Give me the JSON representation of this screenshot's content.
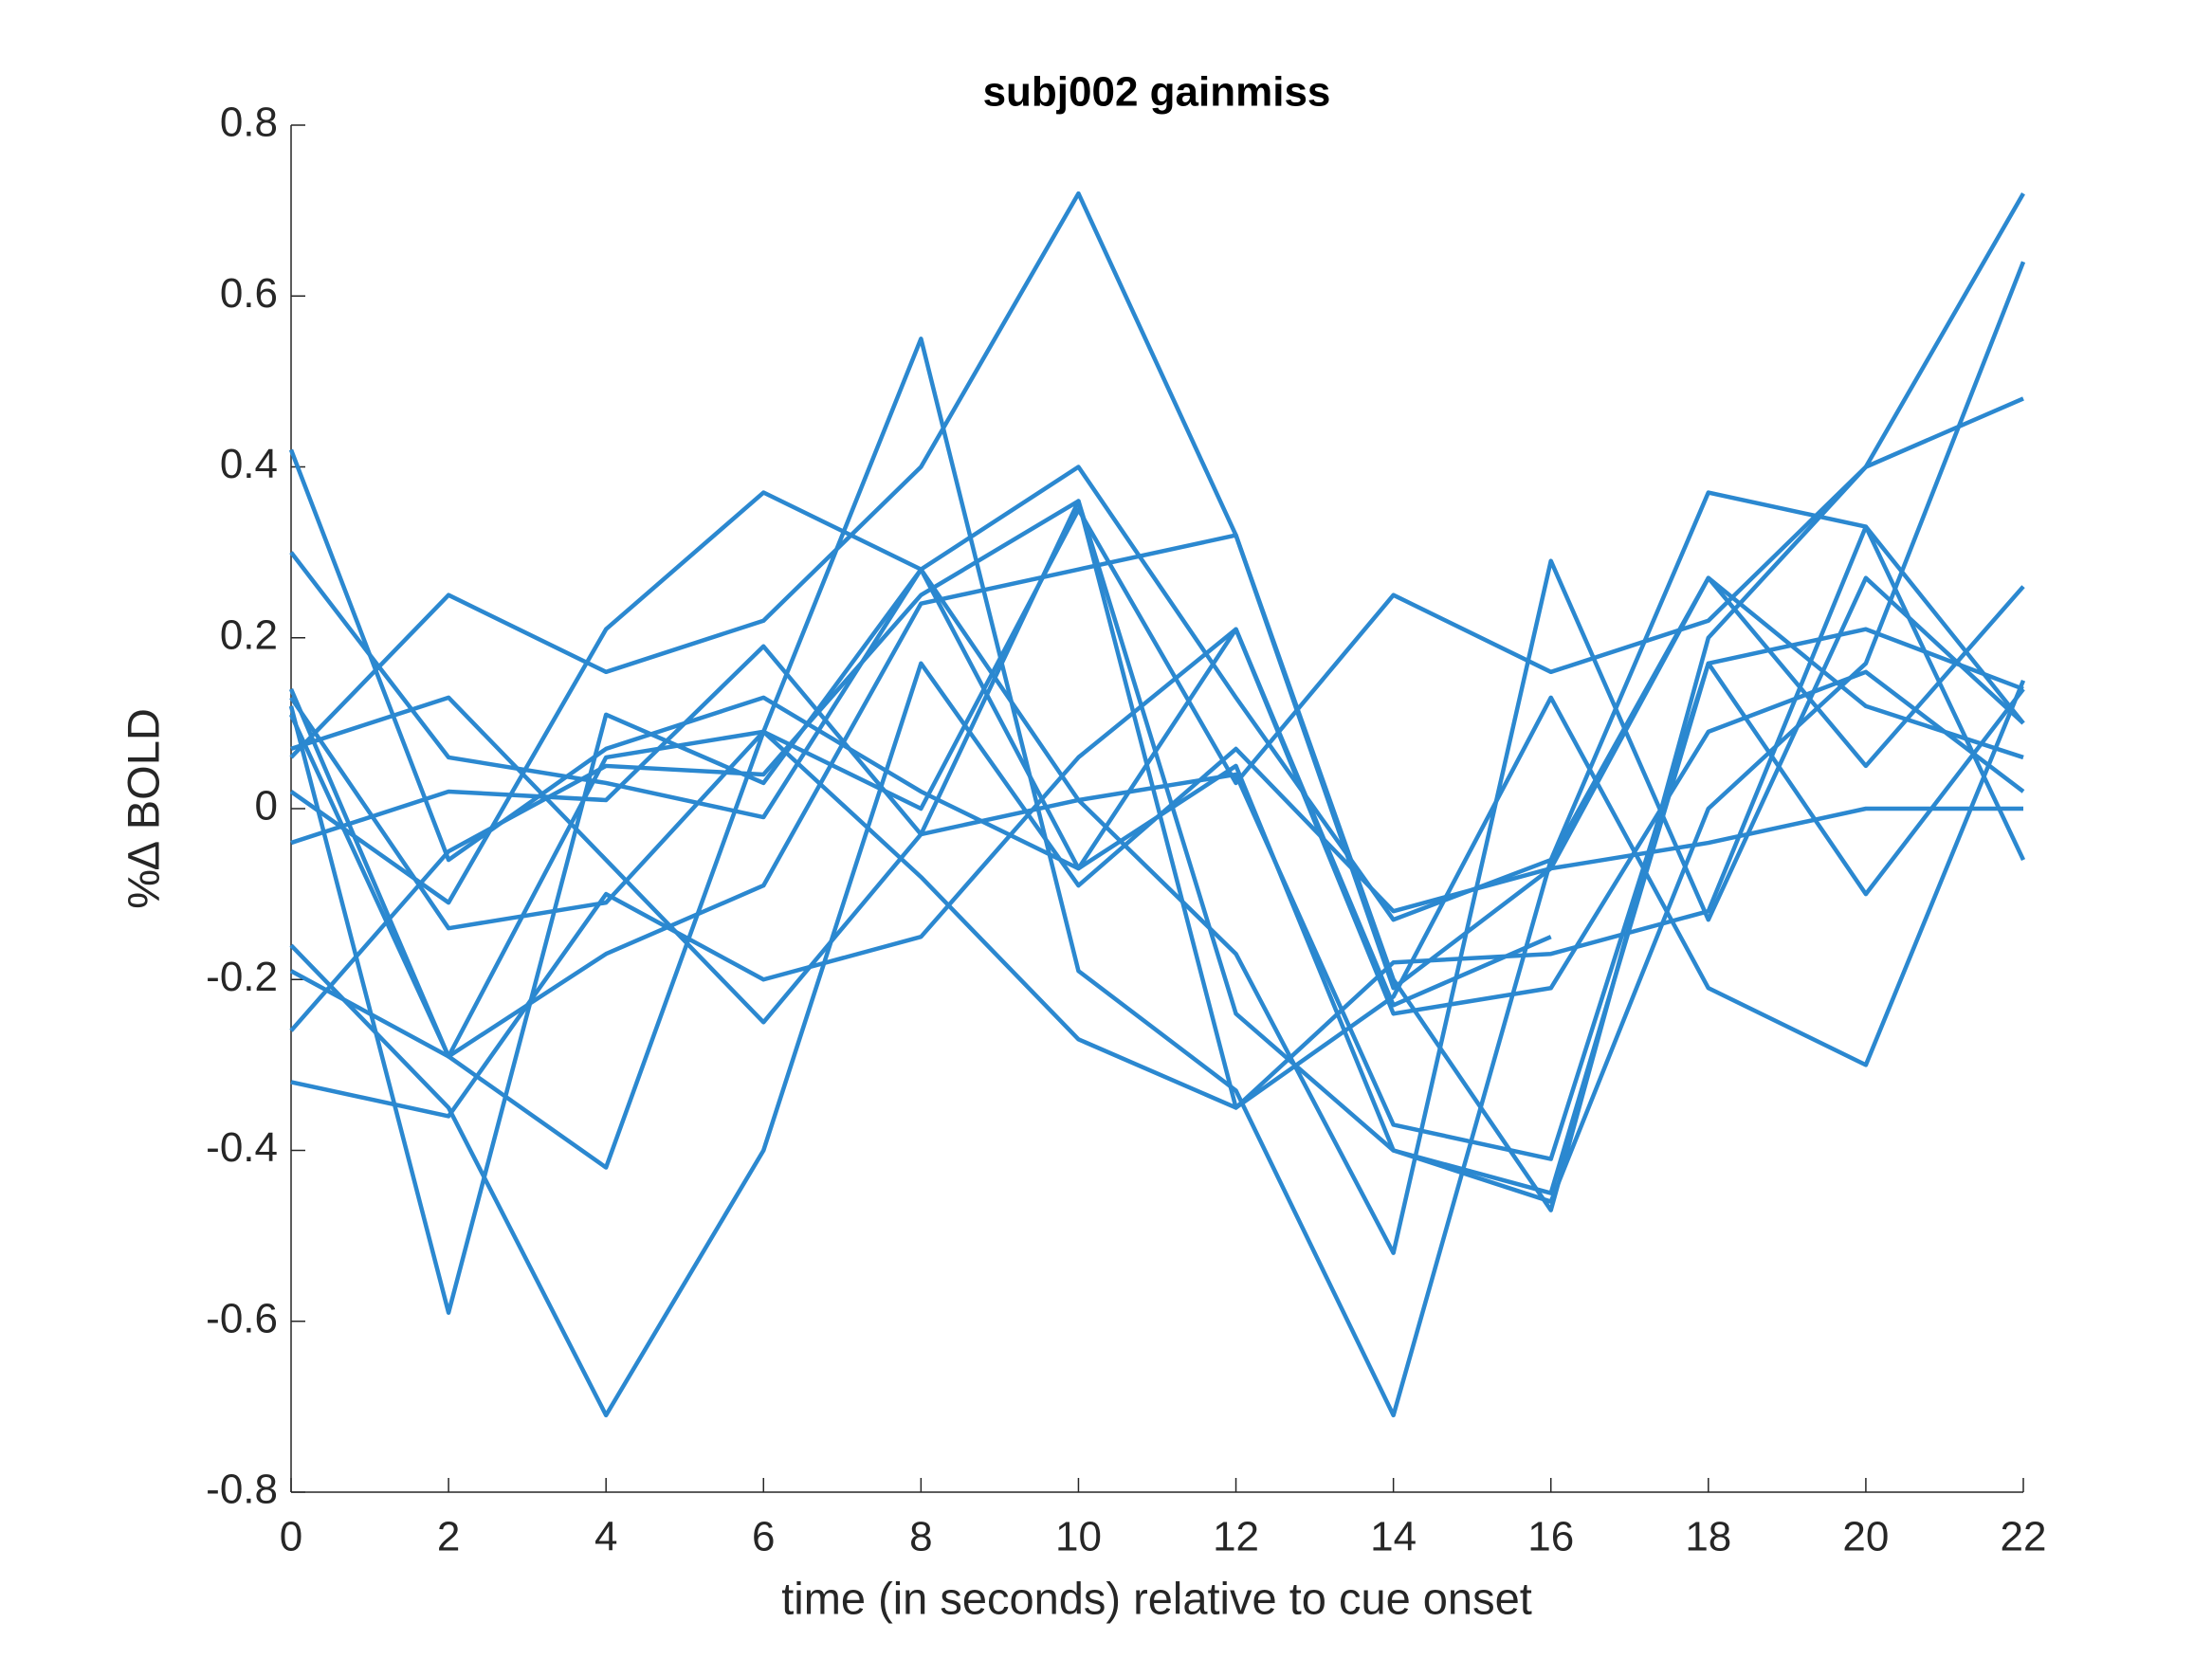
{
  "chart_data": {
    "type": "line",
    "title": "subj002 gainmiss",
    "xlabel": "time (in seconds) relative to cue onset",
    "ylabel": "%∆ BOLD",
    "color": "#2b88d0",
    "x": [
      0,
      2,
      4,
      6,
      8,
      10,
      12,
      14,
      16,
      18,
      20,
      22
    ],
    "series": [
      {
        "values": [
          0.3,
          0.06,
          0.03,
          -0.01,
          0.28,
          0.4,
          0.13,
          -0.13,
          -0.06,
          0.37,
          0.33,
          0.1
        ]
      },
      {
        "values": [
          0.42,
          -0.06,
          0.07,
          0.13,
          0.02,
          -0.07,
          0.05,
          -0.4,
          -0.45,
          0.17,
          -0.1,
          0.14
        ]
      },
      {
        "values": [
          0.14,
          -0.29,
          -0.42,
          0.09,
          0.55,
          -0.19,
          -0.33,
          -0.71,
          -0.06,
          0.27,
          0.05,
          0.26
        ]
      },
      {
        "values": [
          0.12,
          -0.59,
          0.11,
          0.03,
          0.28,
          0.01,
          -0.17,
          -0.52,
          0.29,
          -0.13,
          0.27,
          0.1
        ]
      },
      {
        "values": [
          0.11,
          -0.29,
          -0.17,
          -0.09,
          0.24,
          0.28,
          0.32,
          -0.21,
          -0.07,
          0.27,
          0.12,
          0.06
        ]
      },
      {
        "values": [
          0.07,
          0.13,
          -0.06,
          -0.25,
          -0.03,
          0.01,
          0.04,
          -0.37,
          -0.41,
          0.17,
          0.21,
          0.14
        ]
      },
      {
        "values": [
          0.06,
          0.25,
          0.16,
          0.22,
          0.4,
          0.72,
          0.32,
          -0.2,
          -0.47,
          0.2,
          0.4,
          0.72
        ]
      },
      {
        "values": [
          0.02,
          -0.11,
          0.21,
          0.37,
          0.28,
          -0.07,
          0.21,
          -0.23,
          -0.15,
          null,
          null,
          null
        ]
      },
      {
        "values": [
          -0.04,
          0.02,
          0.01,
          0.19,
          -0.03,
          0.36,
          -0.24,
          -0.4,
          -0.46,
          0.0,
          0.17,
          0.64
        ]
      },
      {
        "values": [
          -0.16,
          -0.35,
          -0.71,
          -0.4,
          0.17,
          -0.09,
          0.07,
          -0.12,
          -0.07,
          -0.04,
          0.0,
          0.0
        ]
      },
      {
        "values": [
          -0.19,
          -0.29,
          0.06,
          0.09,
          0.0,
          0.35,
          0.03,
          0.25,
          0.16,
          0.22,
          0.4,
          0.48
        ]
      },
      {
        "values": [
          -0.26,
          -0.05,
          0.05,
          0.04,
          0.25,
          0.36,
          -0.35,
          -0.18,
          -0.17,
          -0.12,
          0.33,
          -0.06
        ]
      },
      {
        "values": [
          -0.32,
          -0.36,
          -0.1,
          -0.2,
          -0.15,
          0.06,
          0.21,
          -0.24,
          -0.21,
          0.09,
          0.16,
          0.02
        ]
      },
      {
        "values": [
          0.13,
          -0.14,
          -0.11,
          0.09,
          -0.08,
          -0.27,
          -0.35,
          -0.22,
          0.13,
          -0.21,
          -0.3,
          0.15
        ]
      }
    ],
    "xlim": [
      0,
      22
    ],
    "xticks": [
      0,
      2,
      4,
      6,
      8,
      10,
      12,
      14,
      16,
      18,
      20,
      22
    ],
    "ylim": [
      -0.8,
      0.8
    ],
    "yticks": [
      -0.8,
      -0.6,
      -0.4,
      -0.2,
      0,
      0.2,
      0.4,
      0.6,
      0.8
    ],
    "grid": false
  }
}
